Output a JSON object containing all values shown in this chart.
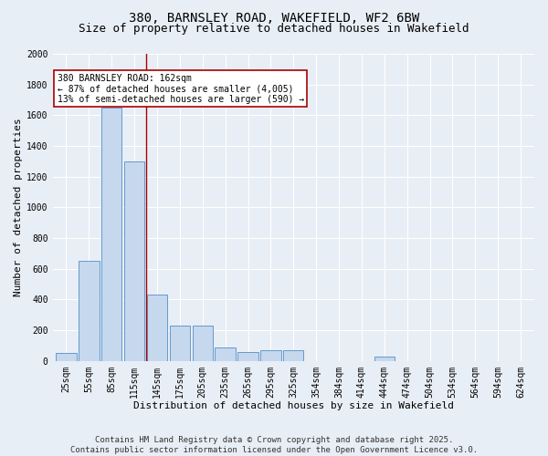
{
  "title1": "380, BARNSLEY ROAD, WAKEFIELD, WF2 6BW",
  "title2": "Size of property relative to detached houses in Wakefield",
  "xlabel": "Distribution of detached houses by size in Wakefield",
  "ylabel": "Number of detached properties",
  "categories": [
    "25sqm",
    "55sqm",
    "85sqm",
    "115sqm",
    "145sqm",
    "175sqm",
    "205sqm",
    "235sqm",
    "265sqm",
    "295sqm",
    "325sqm",
    "354sqm",
    "384sqm",
    "414sqm",
    "444sqm",
    "474sqm",
    "504sqm",
    "534sqm",
    "564sqm",
    "594sqm",
    "624sqm"
  ],
  "values": [
    50,
    650,
    1650,
    1300,
    430,
    230,
    230,
    90,
    60,
    70,
    70,
    0,
    0,
    0,
    30,
    0,
    0,
    0,
    0,
    0,
    0
  ],
  "bar_color": "#c5d8ee",
  "bar_edge_color": "#6699cc",
  "vline_x": 3.5,
  "vline_color": "#aa0000",
  "annotation_text": "380 BARNSLEY ROAD: 162sqm\n← 87% of detached houses are smaller (4,005)\n13% of semi-detached houses are larger (590) →",
  "annotation_box_color": "#ffffff",
  "annotation_box_edge": "#aa0000",
  "ylim": [
    0,
    2000
  ],
  "yticks": [
    0,
    200,
    400,
    600,
    800,
    1000,
    1200,
    1400,
    1600,
    1800,
    2000
  ],
  "background_color": "#e8eef5",
  "grid_color": "#ffffff",
  "footer": "Contains HM Land Registry data © Crown copyright and database right 2025.\nContains public sector information licensed under the Open Government Licence v3.0.",
  "title_fontsize": 10,
  "subtitle_fontsize": 9,
  "axis_label_fontsize": 8,
  "tick_fontsize": 7,
  "footer_fontsize": 6.5,
  "annot_fontsize": 7
}
